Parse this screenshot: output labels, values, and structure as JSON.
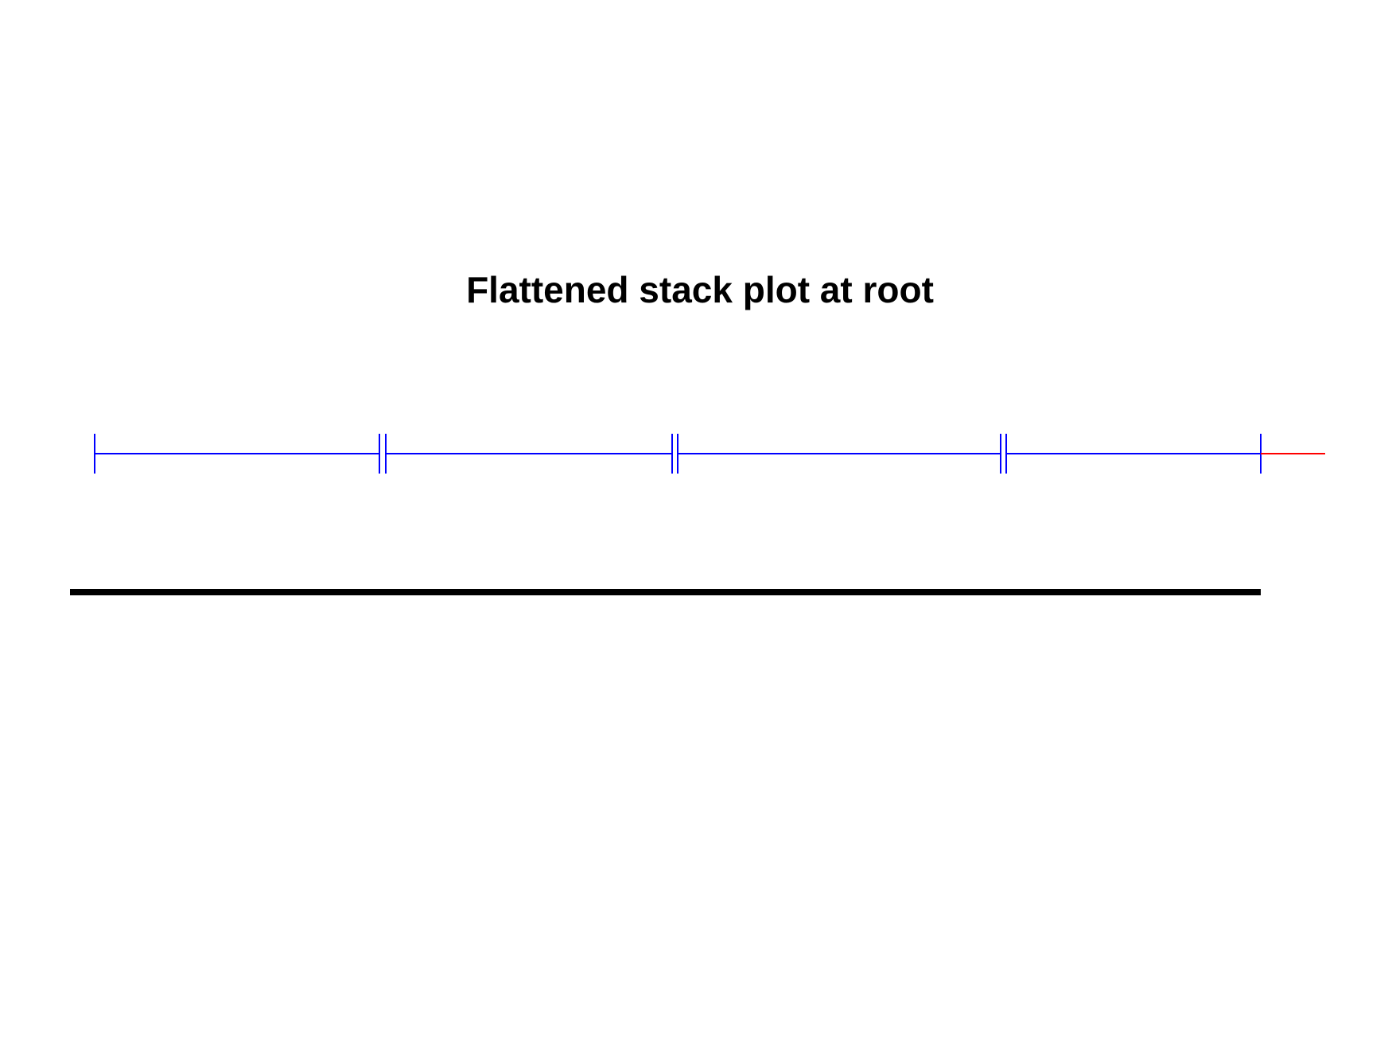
{
  "title": "Flattened stack plot at root",
  "colors": {
    "segment": "#0000ff",
    "tail": "#ff0000",
    "baseline": "#000000",
    "background": "#ffffff"
  },
  "stack": {
    "segments": [
      {
        "start": 0.0,
        "end": 1.0
      },
      {
        "start": 1.0,
        "end": 2.0
      },
      {
        "start": 2.0,
        "end": 3.0
      },
      {
        "start": 3.0,
        "end": 4.0
      }
    ],
    "tail": {
      "start": 4.0,
      "end": 4.25
    }
  },
  "baseline": {
    "start": 0.0,
    "end": 4.0
  }
}
